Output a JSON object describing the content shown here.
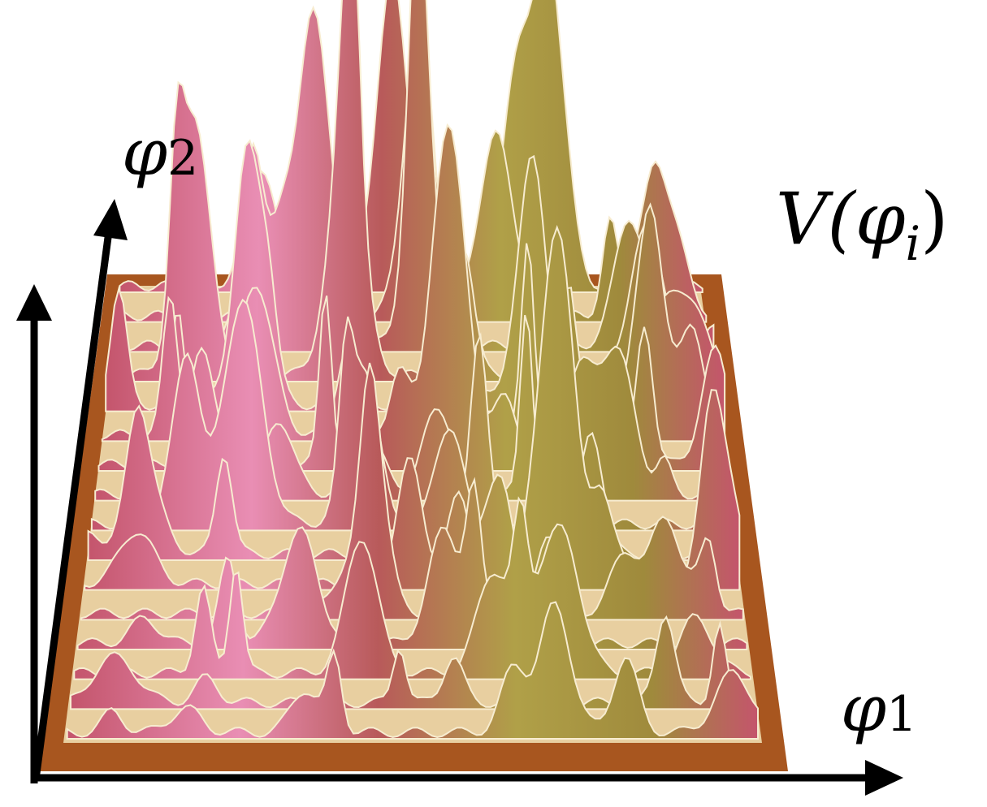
{
  "labels": {
    "phi2": {
      "base": "φ",
      "sub": "2"
    },
    "potential": {
      "pre": "V(φ",
      "sub": "i",
      "post": ")"
    },
    "phi1": {
      "base": "φ",
      "sub": "1"
    }
  }
}
